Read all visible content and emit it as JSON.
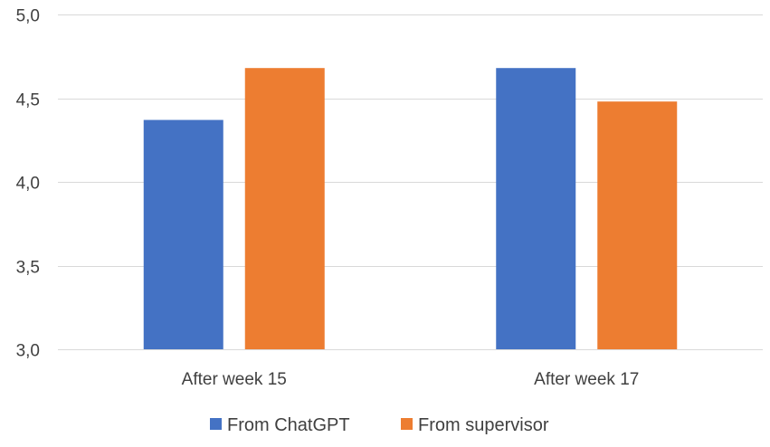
{
  "chart_data": {
    "type": "bar",
    "categories": [
      "After week 15",
      "After week 17"
    ],
    "series": [
      {
        "name": "From ChatGPT",
        "values": [
          4.37,
          4.68
        ],
        "color": "#4472c4"
      },
      {
        "name": "From supervisor",
        "values": [
          4.68,
          4.48
        ],
        "color": "#ed7d31"
      }
    ],
    "ylim": [
      3.0,
      5.0
    ],
    "yticks": [
      "3,0",
      "3,5",
      "4,0",
      "4,5",
      "5,0"
    ],
    "ytick_values": [
      3.0,
      3.5,
      4.0,
      4.5,
      5.0
    ],
    "grid": true,
    "legend_position": "bottom"
  }
}
